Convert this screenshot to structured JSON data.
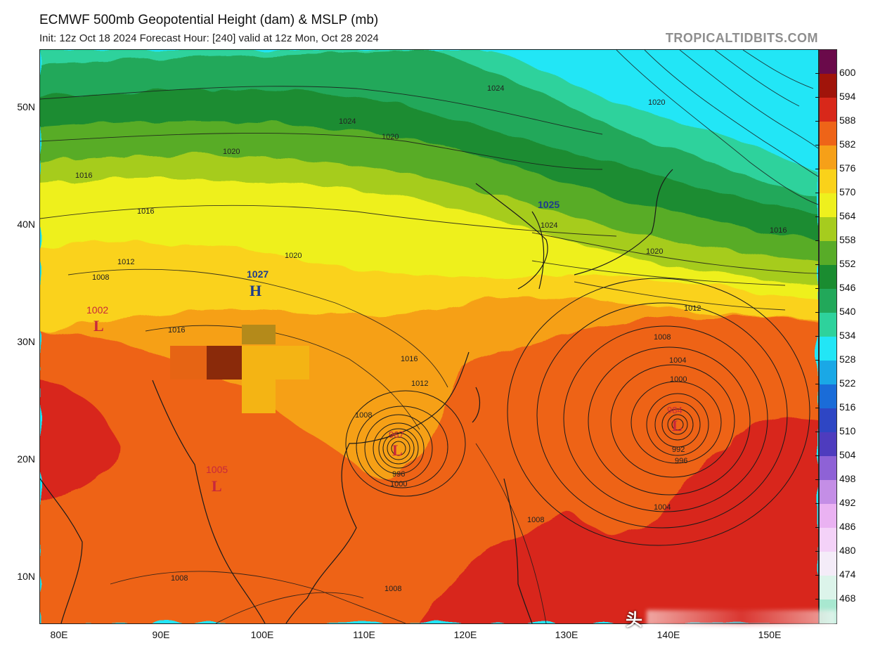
{
  "header": {
    "title": "ECMWF 500mb Geopotential Height (dam) & MSLP (mb)",
    "subtitle": "Init: 12z Oct 18 2024   Forecast Hour: [240]   valid at 12z Mon, Oct 28 2024",
    "brand": "TROPICALTIDBITS.COM"
  },
  "axes": {
    "lat_labels": [
      "50N",
      "40N",
      "30N",
      "20N",
      "10N"
    ],
    "lon_labels": [
      "80E",
      "90E",
      "100E",
      "110E",
      "120E",
      "130E",
      "140E",
      "150E"
    ]
  },
  "colorbar": {
    "labels": [
      "600",
      "594",
      "588",
      "582",
      "576",
      "570",
      "564",
      "558",
      "552",
      "546",
      "540",
      "534",
      "528",
      "522",
      "516",
      "510",
      "504",
      "498",
      "492",
      "486",
      "480",
      "474",
      "468"
    ],
    "colors": [
      "#6a0a4a",
      "#a0140a",
      "#d8281a",
      "#ee6418",
      "#f6a018",
      "#fad21a",
      "#eef01e",
      "#a6cc1e",
      "#58ac28",
      "#1a8c30",
      "#22a85a",
      "#2ed29c",
      "#22e6f6",
      "#1aa8e6",
      "#1a6cd8",
      "#2e46c4",
      "#4e3cbe",
      "#8e62d6",
      "#c48ee6",
      "#eab2f2",
      "#f4d2f8",
      "#f4ecf8",
      "#dcf4ea",
      "#a8e8d0"
    ]
  },
  "pressure_systems": [
    {
      "type": "H",
      "value": "1027",
      "color": "#1e3c8c"
    },
    {
      "type": "L",
      "value": "1002",
      "color": "#c8283c"
    },
    {
      "type": "L",
      "value": "1005",
      "color": "#c8283c"
    },
    {
      "type": "L",
      "value": "967",
      "color": "#c8283c"
    },
    {
      "type": "L",
      "value": "984",
      "color": "#c8283c"
    },
    {
      "type": "H",
      "value": "1025",
      "color": "#1e3c8c"
    }
  ],
  "isobar_labels": [
    "1024",
    "1024",
    "1020",
    "1020",
    "1016",
    "1016",
    "1012",
    "1008",
    "1020",
    "1016",
    "1016",
    "1012",
    "1008",
    "1004",
    "1000",
    "996",
    "992",
    "1008",
    "1008",
    "1004",
    "1008",
    "1008",
    "1020",
    "1016",
    "1024",
    "1020",
    "1012",
    "996",
    "1000"
  ],
  "watermark": "头"
}
